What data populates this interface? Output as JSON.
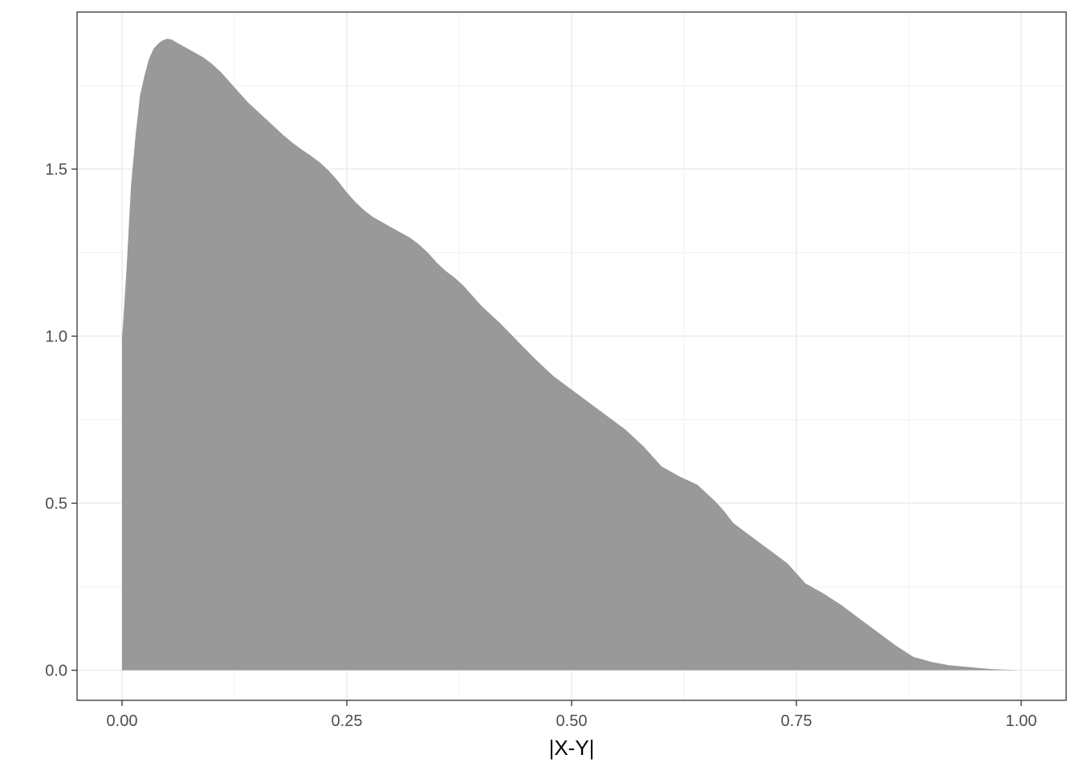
{
  "chart_data": {
    "type": "area",
    "title": "",
    "xlabel": "|X-Y|",
    "ylabel": "",
    "xlim": [
      -0.05,
      1.05
    ],
    "ylim": [
      -0.09,
      1.97
    ],
    "x_ticks": [
      0,
      0.25,
      0.5,
      0.75,
      1.0
    ],
    "x_tick_labels": [
      "0.00",
      "0.25",
      "0.50",
      "0.75",
      "1.00"
    ],
    "y_ticks": [
      0,
      0.5,
      1.0,
      1.5
    ],
    "y_tick_labels": [
      "0.0",
      "0.5",
      "1.0",
      "1.5"
    ],
    "x_minor_ticks": [
      0.125,
      0.375,
      0.625,
      0.875
    ],
    "y_minor_ticks": [
      0.25,
      0.75,
      1.25,
      1.75
    ],
    "grid": true,
    "legend": "none",
    "fill_color": "#999999",
    "fill_opacity": 1,
    "series": [
      {
        "x": [
          0,
          0.001,
          0.005,
          0.01,
          0.015,
          0.02,
          0.025,
          0.03,
          0.035,
          0.04,
          0.045,
          0.05,
          0.055,
          0.06,
          0.07,
          0.08,
          0.09,
          0.1,
          0.11,
          0.12,
          0.13,
          0.14,
          0.15,
          0.16,
          0.17,
          0.18,
          0.19,
          0.2,
          0.21,
          0.22,
          0.23,
          0.24,
          0.25,
          0.26,
          0.27,
          0.28,
          0.29,
          0.3,
          0.31,
          0.32,
          0.33,
          0.34,
          0.35,
          0.36,
          0.37,
          0.38,
          0.39,
          0.4,
          0.42,
          0.44,
          0.46,
          0.48,
          0.5,
          0.52,
          0.54,
          0.56,
          0.58,
          0.6,
          0.62,
          0.64,
          0.65,
          0.66,
          0.67,
          0.68,
          0.7,
          0.72,
          0.74,
          0.75,
          0.76,
          0.78,
          0.8,
          0.82,
          0.84,
          0.86,
          0.88,
          0.9,
          0.92,
          0.94,
          0.96,
          0.97,
          0.98,
          0.99,
          1.0
        ],
        "y": [
          1.0,
          1.03,
          1.2,
          1.45,
          1.6,
          1.72,
          1.78,
          1.83,
          1.86,
          1.875,
          1.885,
          1.89,
          1.888,
          1.88,
          1.865,
          1.85,
          1.835,
          1.815,
          1.79,
          1.76,
          1.73,
          1.7,
          1.675,
          1.65,
          1.625,
          1.6,
          1.578,
          1.558,
          1.54,
          1.52,
          1.495,
          1.465,
          1.43,
          1.4,
          1.375,
          1.355,
          1.34,
          1.325,
          1.31,
          1.295,
          1.275,
          1.25,
          1.22,
          1.195,
          1.175,
          1.15,
          1.12,
          1.09,
          1.04,
          0.985,
          0.93,
          0.88,
          0.84,
          0.8,
          0.76,
          0.72,
          0.67,
          0.61,
          0.58,
          0.555,
          0.53,
          0.505,
          0.475,
          0.44,
          0.4,
          0.36,
          0.32,
          0.29,
          0.26,
          0.23,
          0.195,
          0.155,
          0.115,
          0.075,
          0.04,
          0.025,
          0.015,
          0.01,
          0.005,
          0.003,
          0.002,
          0.001,
          0.0
        ]
      }
    ]
  }
}
